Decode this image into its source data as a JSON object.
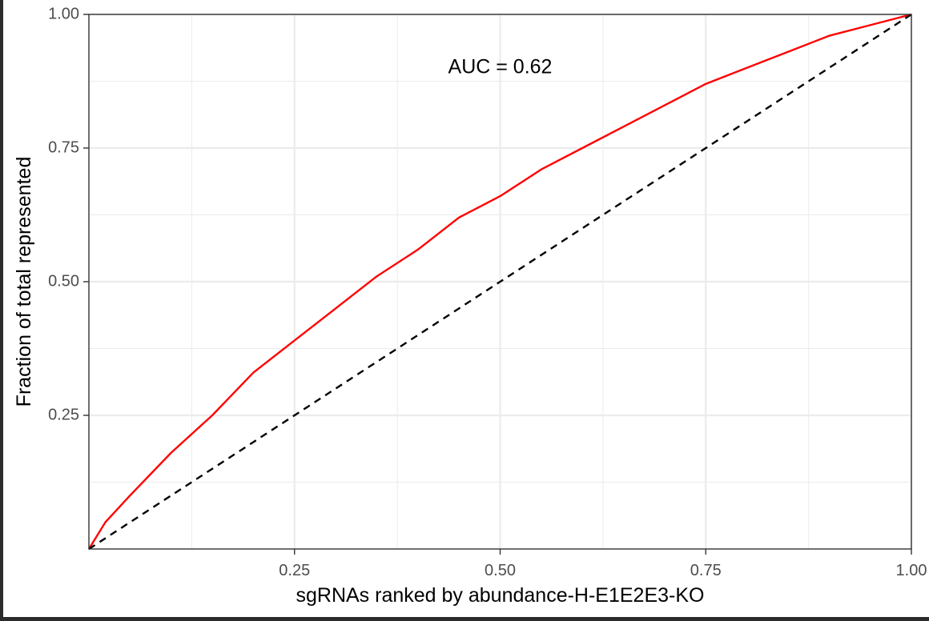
{
  "chart_data": {
    "type": "line",
    "xlabel": "sgRNAs ranked by abundance-H-E1E2E3-KO",
    "ylabel": "Fraction of total represented",
    "xlim": [
      0,
      1
    ],
    "ylim": [
      0,
      1
    ],
    "x_ticks": [
      {
        "value": 0.25,
        "label": "0.25"
      },
      {
        "value": 0.5,
        "label": "0.50"
      },
      {
        "value": 0.75,
        "label": "0.75"
      },
      {
        "value": 1.0,
        "label": "1.00"
      }
    ],
    "y_ticks": [
      {
        "value": 0.25,
        "label": "0.25"
      },
      {
        "value": 0.5,
        "label": "0.50"
      },
      {
        "value": 0.75,
        "label": "0.75"
      },
      {
        "value": 1.0,
        "label": "1.00"
      }
    ],
    "grid": true,
    "annotation": {
      "text": "AUC = 0.62",
      "x": 0.5,
      "y": 0.9
    },
    "series": [
      {
        "color": "#ff0000",
        "style": "solid",
        "x": [
          0.0,
          0.02,
          0.05,
          0.1,
          0.15,
          0.2,
          0.25,
          0.3,
          0.35,
          0.4,
          0.45,
          0.5,
          0.55,
          0.6,
          0.65,
          0.7,
          0.75,
          0.8,
          0.85,
          0.9,
          0.95,
          1.0
        ],
        "y": [
          0.0,
          0.05,
          0.1,
          0.18,
          0.25,
          0.33,
          0.39,
          0.45,
          0.51,
          0.56,
          0.62,
          0.66,
          0.71,
          0.75,
          0.79,
          0.83,
          0.87,
          0.9,
          0.93,
          0.96,
          0.98,
          1.0
        ]
      },
      {
        "color": "#000000",
        "style": "dashed",
        "x": [
          0,
          1
        ],
        "y": [
          0,
          1
        ]
      }
    ]
  }
}
